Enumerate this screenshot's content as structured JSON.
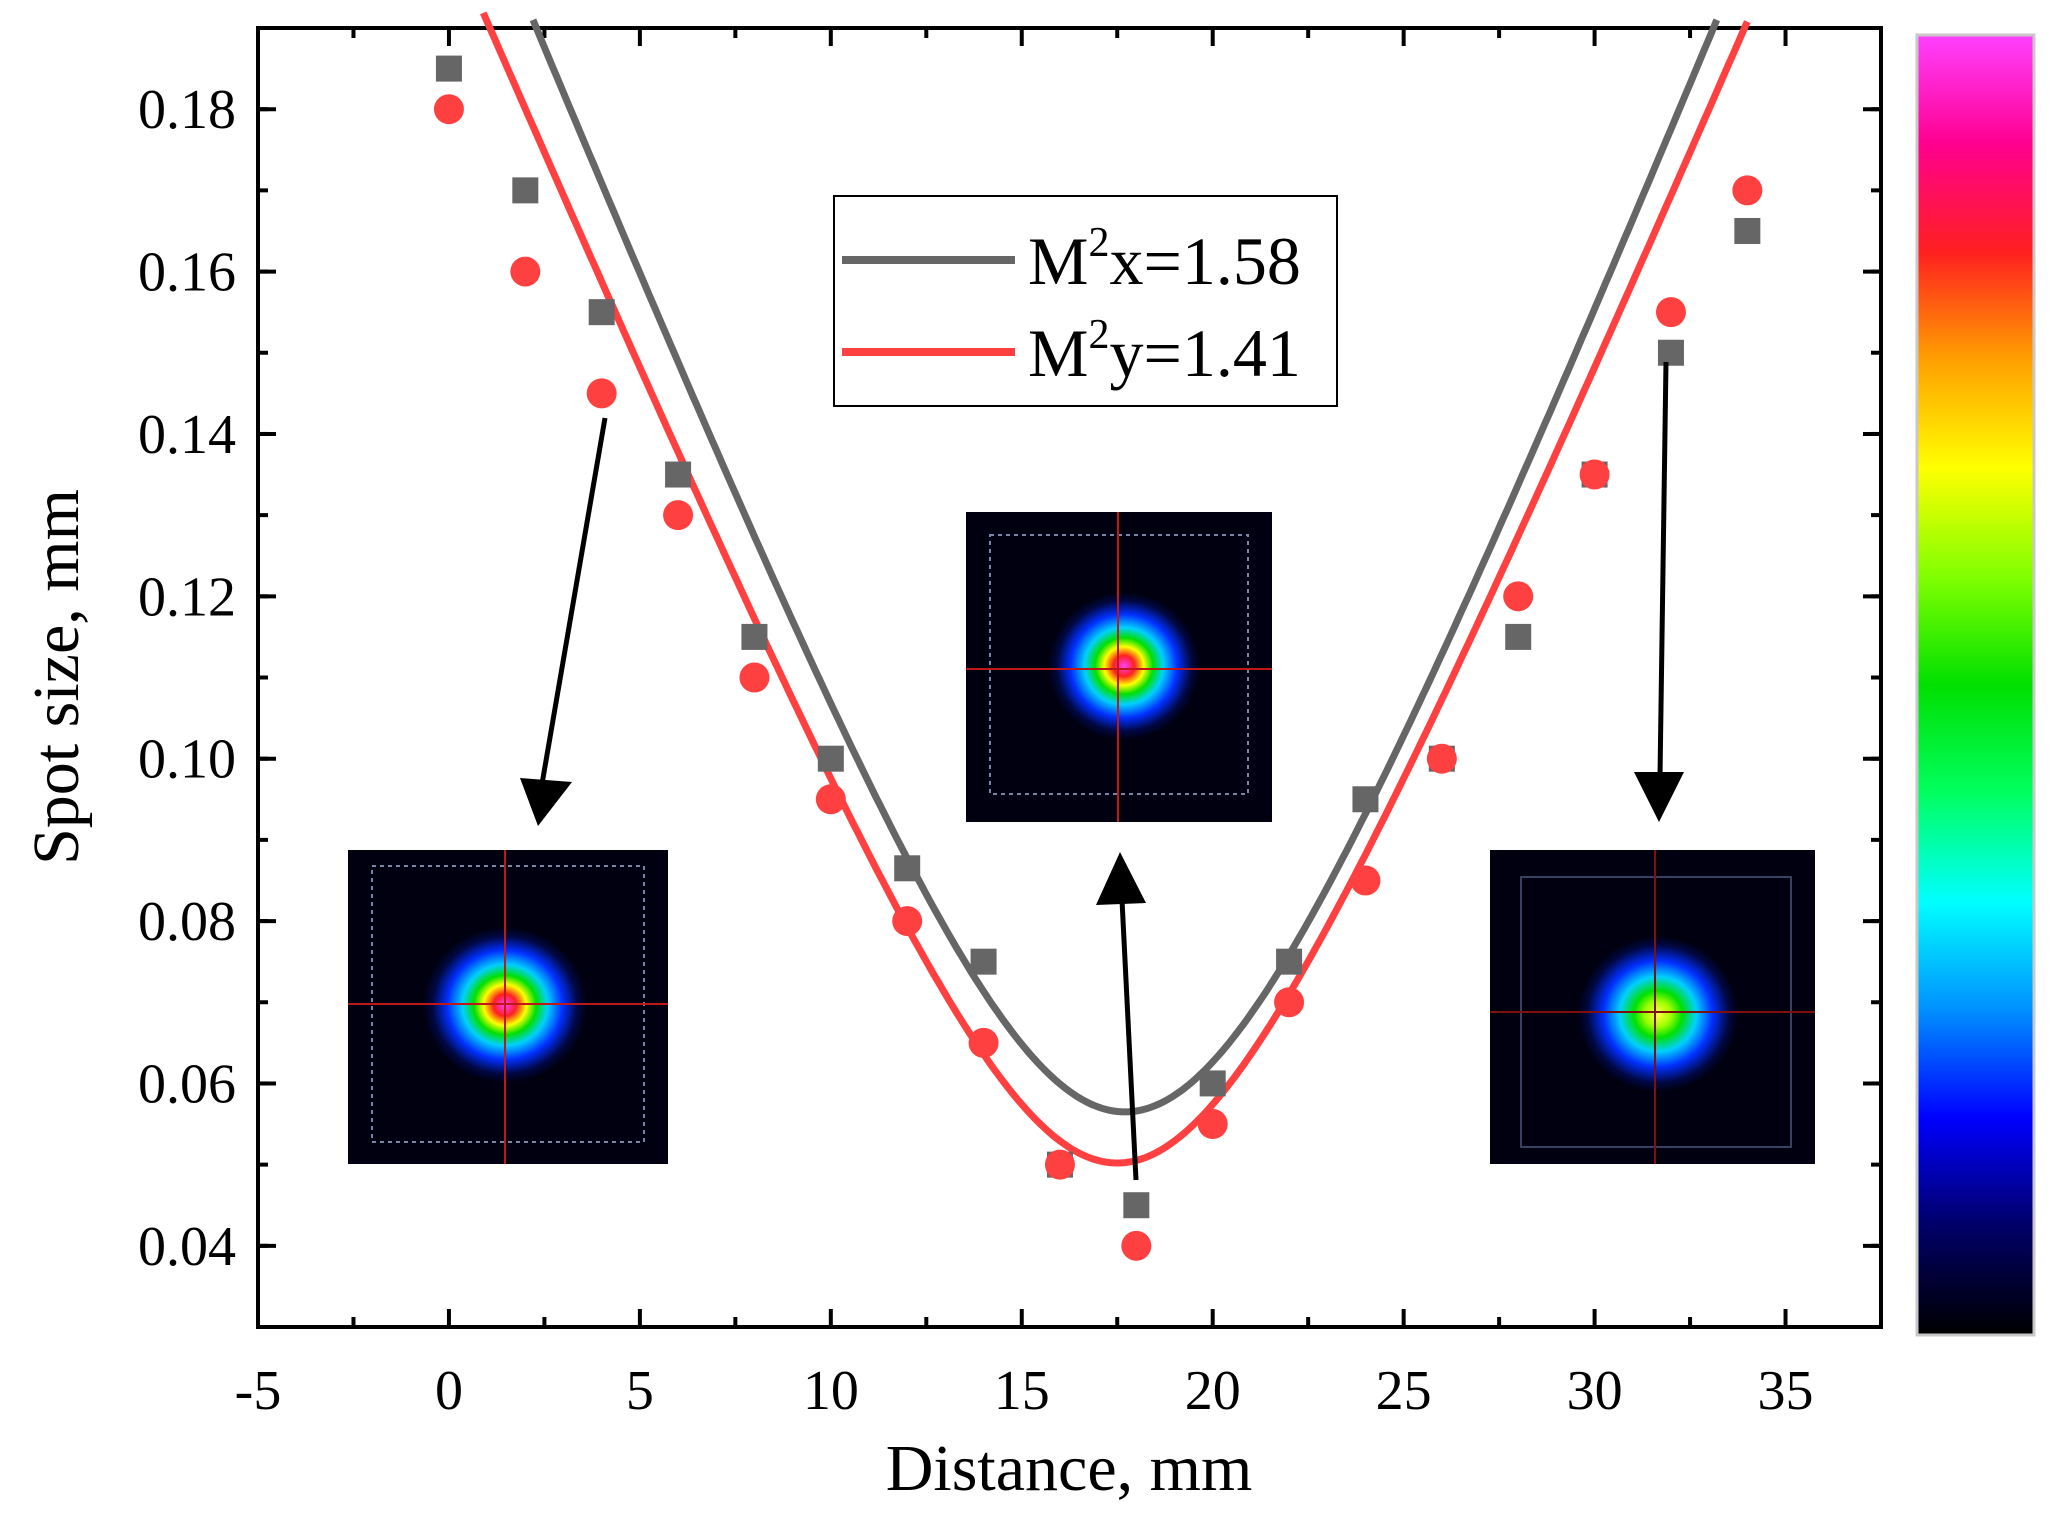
{
  "chart_data": {
    "type": "scatter",
    "xlabel": "Distance, mm",
    "ylabel": "Spot size, mm",
    "xlim": [
      -5,
      37.5
    ],
    "ylim": [
      0.03,
      0.19
    ],
    "x_ticks": [
      -5,
      0,
      5,
      10,
      15,
      20,
      25,
      30,
      35
    ],
    "x_tick_labels": [
      "-5",
      "0",
      "5",
      "10",
      "15",
      "20",
      "25",
      "30",
      "35"
    ],
    "y_ticks": [
      0.04,
      0.06,
      0.08,
      0.1,
      0.12,
      0.14,
      0.16,
      0.18
    ],
    "y_tick_labels": [
      "0.04",
      "0.06",
      "0.08",
      "0.10",
      "0.12",
      "0.14",
      "0.16",
      "0.18"
    ],
    "grid": false,
    "legend_position": "top-center",
    "series": [
      {
        "name": "M2x=1.58",
        "label_base": "M",
        "label_sup": "2",
        "label_rest": "x=1.58",
        "color": "#666666",
        "marker": "square",
        "x": [
          0,
          2,
          4,
          6,
          8,
          10,
          12,
          14,
          16,
          18,
          20,
          22,
          24,
          26,
          28,
          30,
          32,
          34
        ],
        "y": [
          0.185,
          0.17,
          0.155,
          0.135,
          0.115,
          0.1,
          0.0865,
          0.075,
          0.05,
          0.045,
          0.06,
          0.075,
          0.095,
          0.1,
          0.115,
          0.135,
          0.15,
          0.165
        ],
        "fit": {
          "w0": 0.0565,
          "z0": 17.7,
          "zr": 4.8
        }
      },
      {
        "name": "M2y=1.41",
        "label_base": "M",
        "label_sup": "2",
        "label_rest": "y=1.41",
        "color": "#ff4040",
        "marker": "circle",
        "x": [
          0,
          2,
          4,
          6,
          8,
          10,
          12,
          14,
          16,
          18,
          20,
          22,
          24,
          26,
          28,
          30,
          32,
          34
        ],
        "y": [
          0.18,
          0.16,
          0.145,
          0.13,
          0.11,
          0.095,
          0.08,
          0.065,
          0.05,
          0.04,
          0.055,
          0.07,
          0.085,
          0.1,
          0.12,
          0.135,
          0.155,
          0.17
        ],
        "fit": {
          "w0": 0.0502,
          "z0": 17.5,
          "zr": 4.5
        }
      }
    ],
    "annotations": [
      {
        "name": "beam-profile-left",
        "target_x": 4,
        "target_y": 0.145
      },
      {
        "name": "beam-profile-center",
        "target_x": 17.6,
        "target_y": 0.05
      },
      {
        "name": "beam-profile-right",
        "target_x": 32,
        "target_y": 0.15
      }
    ],
    "colorbar": {
      "stops": [
        "#000000",
        "#000066",
        "#0000ff",
        "#0090ff",
        "#00ffff",
        "#00ff60",
        "#00e000",
        "#80ff00",
        "#ffff00",
        "#ffa000",
        "#ff2020",
        "#ff0090",
        "#ff40ff"
      ]
    }
  }
}
